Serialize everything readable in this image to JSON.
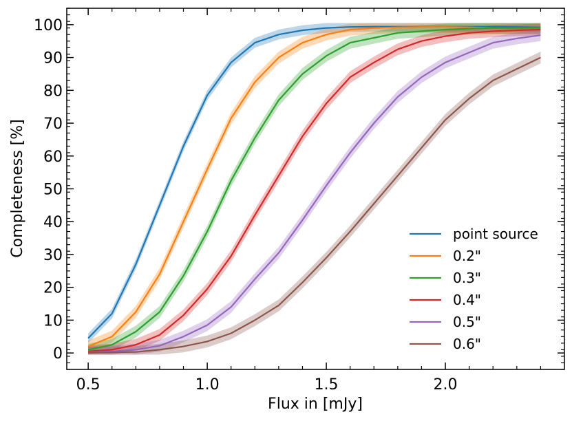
{
  "chart_data": {
    "type": "line",
    "xlabel": "Flux in [mJy]",
    "ylabel": "Completeness [%]",
    "xlim": [
      0.41,
      2.5
    ],
    "ylim": [
      -5,
      105
    ],
    "xticks": [
      0.5,
      1.0,
      1.5,
      2.0
    ],
    "xtick_labels": [
      "0.5",
      "1.0",
      "1.5",
      "2.0"
    ],
    "yticks": [
      0,
      10,
      20,
      30,
      40,
      50,
      60,
      70,
      80,
      90,
      100
    ],
    "ytick_labels": [
      "0",
      "10",
      "20",
      "30",
      "40",
      "50",
      "60",
      "70",
      "80",
      "90",
      "100"
    ],
    "grid": false,
    "legend_position": "bottom-right",
    "x": [
      0.5,
      0.6,
      0.7,
      0.8,
      0.9,
      1.0,
      1.1,
      1.2,
      1.3,
      1.4,
      1.5,
      1.6,
      1.7,
      1.8,
      1.9,
      2.0,
      2.1,
      2.2,
      2.3,
      2.4
    ],
    "series": [
      {
        "name": "point source",
        "color": "#1f77b4",
        "band": 1.5,
        "values": [
          4.5,
          12,
          27,
          45,
          63,
          78.5,
          88.5,
          94.5,
          97,
          98.3,
          99,
          99.3,
          99.4,
          99.4,
          99.4,
          99.4,
          99.4,
          99.4,
          99.3,
          99.2
        ]
      },
      {
        "name": "0.2\"",
        "color": "#ff7f0e",
        "band": 1.8,
        "values": [
          2,
          5,
          12.5,
          24,
          40,
          56,
          71.5,
          82.5,
          90,
          94.5,
          97,
          98.5,
          99,
          99.2,
          99.3,
          99.3,
          99.2,
          99,
          99,
          99
        ]
      },
      {
        "name": "0.3\"",
        "color": "#2ca02c",
        "band": 1.8,
        "values": [
          1,
          2.5,
          6.5,
          12.5,
          23.5,
          37,
          52.5,
          65.5,
          77,
          85,
          90.5,
          94.5,
          96,
          97.5,
          98,
          98.5,
          98.8,
          99,
          99,
          99
        ]
      },
      {
        "name": "0.4\"",
        "color": "#d62728",
        "band": 1.8,
        "values": [
          0.5,
          1,
          2.5,
          5.5,
          11.5,
          19.5,
          29.5,
          42,
          54,
          66,
          76,
          84,
          88.5,
          92.5,
          95,
          96.5,
          97.5,
          98,
          98.3,
          98.5
        ]
      },
      {
        "name": "0.5\"",
        "color": "#9467bd",
        "band": 1.8,
        "values": [
          0.2,
          0.5,
          1,
          2.2,
          5,
          8.5,
          14,
          22.5,
          30.5,
          40.5,
          51,
          61,
          70,
          78,
          84,
          88.5,
          91.5,
          94.5,
          95.8,
          96.8
        ]
      },
      {
        "name": "0.6\"",
        "color": "#8c564b",
        "band": 1.8,
        "values": [
          0.1,
          0.2,
          0.3,
          1,
          2,
          3.5,
          6,
          10,
          14.5,
          21.5,
          29,
          37,
          45.5,
          54,
          62.5,
          71,
          77.5,
          83,
          86.5,
          90
        ]
      }
    ]
  }
}
